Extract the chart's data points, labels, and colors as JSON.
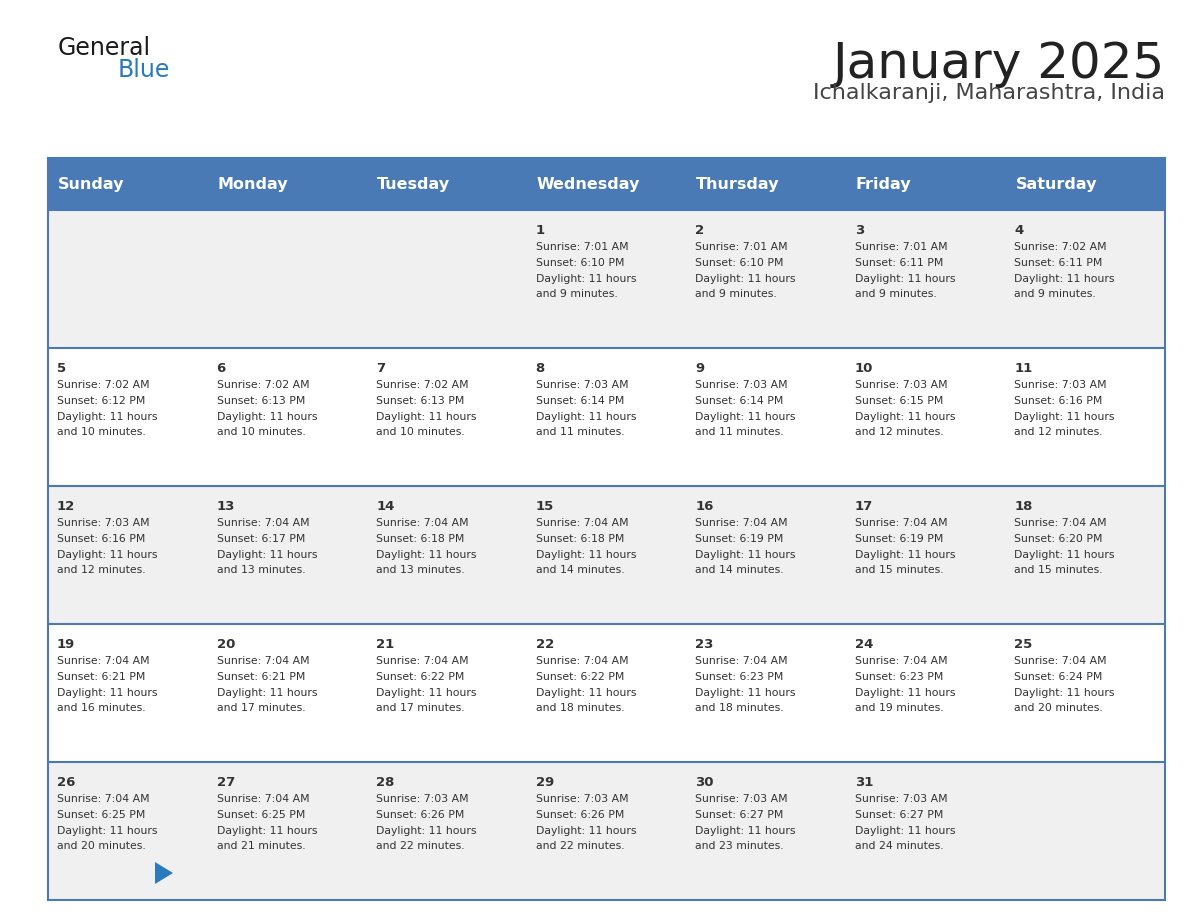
{
  "title": "January 2025",
  "subtitle": "Ichalkaranji, Maharashtra, India",
  "header_color": "#4a7ab5",
  "header_text_color": "#ffffff",
  "cell_bg_row0": "#f0f0f0",
  "cell_bg_row1": "#ffffff",
  "cell_bg_row2": "#f0f0f0",
  "cell_bg_row3": "#ffffff",
  "cell_bg_row4": "#f0f0f0",
  "border_color": "#4a7ab5",
  "title_color": "#222222",
  "subtitle_color": "#444444",
  "text_color": "#333333",
  "days_of_week": [
    "Sunday",
    "Monday",
    "Tuesday",
    "Wednesday",
    "Thursday",
    "Friday",
    "Saturday"
  ],
  "calendar": [
    [
      {
        "day": "",
        "sunrise": "",
        "sunset": "",
        "daylight_min": ""
      },
      {
        "day": "",
        "sunrise": "",
        "sunset": "",
        "daylight_min": ""
      },
      {
        "day": "",
        "sunrise": "",
        "sunset": "",
        "daylight_min": ""
      },
      {
        "day": "1",
        "sunrise": "7:01 AM",
        "sunset": "6:10 PM",
        "daylight_min": "9"
      },
      {
        "day": "2",
        "sunrise": "7:01 AM",
        "sunset": "6:10 PM",
        "daylight_min": "9"
      },
      {
        "day": "3",
        "sunrise": "7:01 AM",
        "sunset": "6:11 PM",
        "daylight_min": "9"
      },
      {
        "day": "4",
        "sunrise": "7:02 AM",
        "sunset": "6:11 PM",
        "daylight_min": "9"
      }
    ],
    [
      {
        "day": "5",
        "sunrise": "7:02 AM",
        "sunset": "6:12 PM",
        "daylight_min": "10"
      },
      {
        "day": "6",
        "sunrise": "7:02 AM",
        "sunset": "6:13 PM",
        "daylight_min": "10"
      },
      {
        "day": "7",
        "sunrise": "7:02 AM",
        "sunset": "6:13 PM",
        "daylight_min": "10"
      },
      {
        "day": "8",
        "sunrise": "7:03 AM",
        "sunset": "6:14 PM",
        "daylight_min": "11"
      },
      {
        "day": "9",
        "sunrise": "7:03 AM",
        "sunset": "6:14 PM",
        "daylight_min": "11"
      },
      {
        "day": "10",
        "sunrise": "7:03 AM",
        "sunset": "6:15 PM",
        "daylight_min": "12"
      },
      {
        "day": "11",
        "sunrise": "7:03 AM",
        "sunset": "6:16 PM",
        "daylight_min": "12"
      }
    ],
    [
      {
        "day": "12",
        "sunrise": "7:03 AM",
        "sunset": "6:16 PM",
        "daylight_min": "12"
      },
      {
        "day": "13",
        "sunrise": "7:04 AM",
        "sunset": "6:17 PM",
        "daylight_min": "13"
      },
      {
        "day": "14",
        "sunrise": "7:04 AM",
        "sunset": "6:18 PM",
        "daylight_min": "13"
      },
      {
        "day": "15",
        "sunrise": "7:04 AM",
        "sunset": "6:18 PM",
        "daylight_min": "14"
      },
      {
        "day": "16",
        "sunrise": "7:04 AM",
        "sunset": "6:19 PM",
        "daylight_min": "14"
      },
      {
        "day": "17",
        "sunrise": "7:04 AM",
        "sunset": "6:19 PM",
        "daylight_min": "15"
      },
      {
        "day": "18",
        "sunrise": "7:04 AM",
        "sunset": "6:20 PM",
        "daylight_min": "15"
      }
    ],
    [
      {
        "day": "19",
        "sunrise": "7:04 AM",
        "sunset": "6:21 PM",
        "daylight_min": "16"
      },
      {
        "day": "20",
        "sunrise": "7:04 AM",
        "sunset": "6:21 PM",
        "daylight_min": "17"
      },
      {
        "day": "21",
        "sunrise": "7:04 AM",
        "sunset": "6:22 PM",
        "daylight_min": "17"
      },
      {
        "day": "22",
        "sunrise": "7:04 AM",
        "sunset": "6:22 PM",
        "daylight_min": "18"
      },
      {
        "day": "23",
        "sunrise": "7:04 AM",
        "sunset": "6:23 PM",
        "daylight_min": "18"
      },
      {
        "day": "24",
        "sunrise": "7:04 AM",
        "sunset": "6:23 PM",
        "daylight_min": "19"
      },
      {
        "day": "25",
        "sunrise": "7:04 AM",
        "sunset": "6:24 PM",
        "daylight_min": "20"
      }
    ],
    [
      {
        "day": "26",
        "sunrise": "7:04 AM",
        "sunset": "6:25 PM",
        "daylight_min": "20"
      },
      {
        "day": "27",
        "sunrise": "7:04 AM",
        "sunset": "6:25 PM",
        "daylight_min": "21"
      },
      {
        "day": "28",
        "sunrise": "7:03 AM",
        "sunset": "6:26 PM",
        "daylight_min": "22"
      },
      {
        "day": "29",
        "sunrise": "7:03 AM",
        "sunset": "6:26 PM",
        "daylight_min": "22"
      },
      {
        "day": "30",
        "sunrise": "7:03 AM",
        "sunset": "6:27 PM",
        "daylight_min": "23"
      },
      {
        "day": "31",
        "sunrise": "7:03 AM",
        "sunset": "6:27 PM",
        "daylight_min": "24"
      },
      {
        "day": "",
        "sunrise": "",
        "sunset": "",
        "daylight_min": ""
      }
    ]
  ],
  "logo_general_color": "#1a1a1a",
  "logo_blue_color": "#2a7abf",
  "logo_triangle_color": "#2a7abf"
}
